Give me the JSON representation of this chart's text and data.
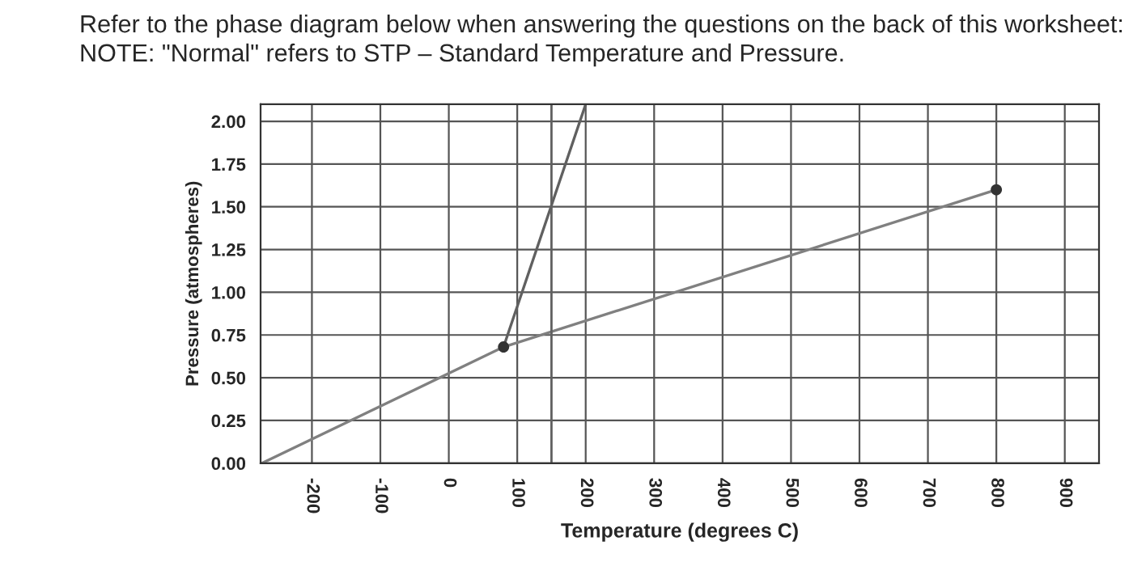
{
  "chart_data": {
    "type": "line",
    "title": "Refer to the phase diagram below when answering the questions on the back of this worksheet:",
    "subtitle": "NOTE: \"Normal\" refers to STP – Standard Temperature and Pressure.",
    "xlabel": "Temperature (degrees C)",
    "ylabel": "Pressure (atmospheres)",
    "series": [
      {
        "color": "#808080",
        "x": [
          -273,
          80
        ],
        "values": [
          0,
          0.68
        ]
      },
      {
        "color": "#808080",
        "x": [
          80,
          800
        ],
        "values": [
          0.68,
          1.6
        ]
      },
      {
        "color": "#606060",
        "x": [
          80,
          200
        ],
        "values": [
          0.68,
          2.1
        ]
      },
      {
        "type": "scatter",
        "marker": "circle",
        "color": "#333333",
        "x": [
          80,
          800
        ],
        "values": [
          0.68,
          1.6
        ]
      }
    ],
    "ref_lines": [
      {
        "axis": "x",
        "value": 150,
        "color": "#606060"
      }
    ],
    "xlim": [
      -275,
      950
    ],
    "ylim": [
      0,
      2.1
    ],
    "xticks": [
      -200,
      -100,
      0,
      100,
      200,
      300,
      400,
      500,
      600,
      700,
      800,
      900
    ],
    "yticks": [
      {
        "value": 0,
        "label": "0.00"
      },
      {
        "value": 0.25,
        "label": "0.25"
      },
      {
        "value": 0.5,
        "label": "0.50"
      },
      {
        "value": 0.75,
        "label": "0.75"
      },
      {
        "value": 1,
        "label": "1.00"
      },
      {
        "value": 1.25,
        "label": "1.25"
      },
      {
        "value": 1.5,
        "label": "1.50"
      },
      {
        "value": 1.75,
        "label": "1.75"
      },
      {
        "value": 2,
        "label": "2.00"
      }
    ],
    "grid": true
  }
}
